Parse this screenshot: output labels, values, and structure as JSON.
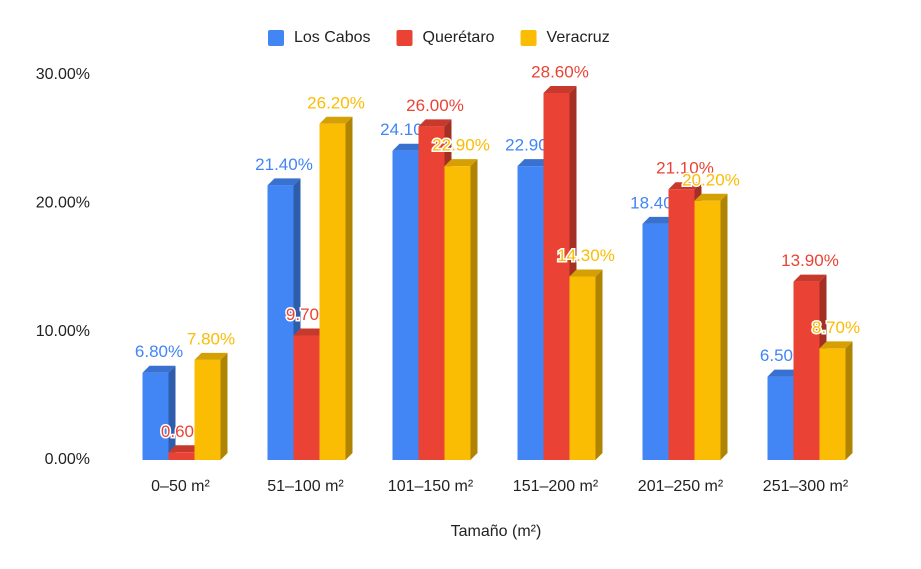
{
  "chart_data": {
    "type": "bar3d",
    "x_label": "Tamaño (m²)",
    "categories": [
      "0–50 m²",
      "51–100 m²",
      "101–150 m²",
      "151–200 m²",
      "201–250 m²",
      "251–300 m²"
    ],
    "series": [
      {
        "name": "Los Cabos",
        "color": "#4285f4",
        "values": [
          6.8,
          21.4,
          24.1,
          22.9,
          18.4,
          6.5
        ],
        "value_labels": [
          "6.80%",
          "21.40%",
          "24.10%",
          "22.90%",
          "18.40%",
          "6.50%"
        ]
      },
      {
        "name": "Querétaro",
        "color": "#ea4335",
        "values": [
          0.6,
          9.7,
          26.0,
          28.6,
          21.1,
          13.9
        ],
        "value_labels": [
          "0.60%",
          "9.70%",
          "26.00%",
          "28.60%",
          "21.10%",
          "13.90%"
        ]
      },
      {
        "name": "Veracruz",
        "color": "#fbbc04",
        "values": [
          7.8,
          26.2,
          22.9,
          14.3,
          20.2,
          8.7
        ],
        "value_labels": [
          "7.80%",
          "26.20%",
          "22.90%",
          "14.30%",
          "20.20%",
          "8.70%"
        ]
      }
    ],
    "ylim": [
      0,
      30
    ],
    "yticks": [
      {
        "value": 0,
        "label": "0.00%"
      },
      {
        "value": 10,
        "label": "10.00%"
      },
      {
        "value": 20,
        "label": "20.00%"
      },
      {
        "value": 30,
        "label": "30.00%"
      }
    ],
    "legend": "top"
  }
}
